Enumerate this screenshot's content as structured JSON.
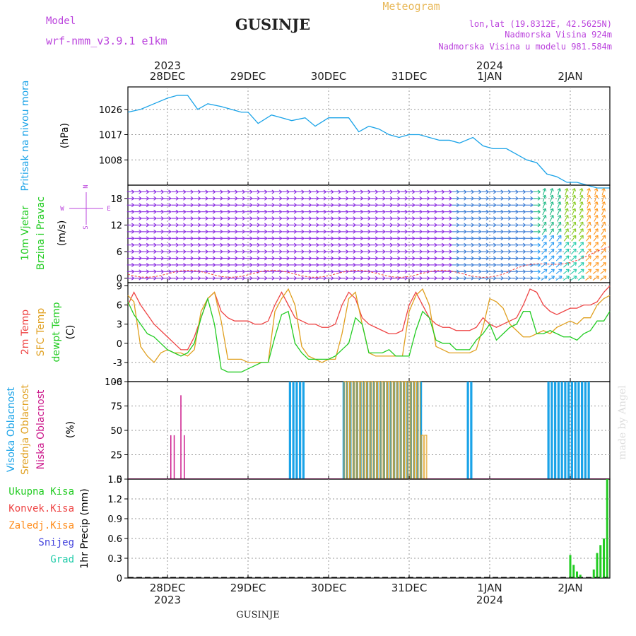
{
  "header": {
    "model_label": "Model",
    "model_name": "wrf-nmm_v3.9.1 e1km",
    "title": "GUSINJE",
    "meteogram": "Meteogram",
    "lonlat": "lon,lat (19.8312E, 42.5625N)",
    "altitude": "Nadmorska Visina 924m",
    "model_altitude": "Nadmorska Visina u modelu 981.584m"
  },
  "footer": {
    "station": "GUSINJE"
  },
  "watermark": "made by Angel",
  "compass": {
    "north": "N",
    "south": "S",
    "west": "W",
    "east": "E"
  },
  "colors": {
    "pressure": "#1aa3e8",
    "t2m": "#ee4444",
    "sfc": "#e0a020",
    "dew": "#22cc22",
    "high_cloud": "#1aa3e8",
    "mid_cloud": "#e0a020",
    "low_cloud": "#cc1a8c",
    "total_precip": "#22cc22",
    "conv_precip": "#ee4444",
    "freezing": "#ff8c1a",
    "snow": "#4444dd",
    "grad": "#22ccaa",
    "label_purple": "#bb44dd"
  },
  "chart_data": [
    {
      "type": "line",
      "ylabels": [
        "Pritisak na nivou mora",
        "(hPa)"
      ],
      "yticks": [
        1008,
        1017,
        1026
      ],
      "ylim": [
        999,
        1034
      ],
      "grid": true,
      "x_dates_top": [
        {
          "day": "28DEC",
          "year": "2023"
        },
        {
          "day": "29DEC",
          "year": ""
        },
        {
          "day": "30DEC",
          "year": ""
        },
        {
          "day": "31DEC",
          "year": ""
        },
        {
          "day": "1JAN",
          "year": "2024"
        },
        {
          "day": "2JAN",
          "year": ""
        }
      ],
      "x_hours": [
        -12,
        -8,
        -4,
        0,
        3,
        6,
        9,
        12,
        16,
        19,
        22,
        24,
        27,
        31,
        34,
        37,
        41,
        44,
        48,
        51,
        54,
        57,
        60,
        63,
        66,
        69,
        72,
        75,
        78,
        81,
        84,
        87,
        91,
        94,
        97,
        101,
        104,
        107,
        110,
        113,
        116,
        119,
        122,
        125,
        128,
        131,
        132
      ],
      "series": [
        {
          "values": [
            1025,
            1026,
            1028,
            1030,
            1031,
            1031,
            1026,
            1028,
            1027,
            1026,
            1025,
            1025,
            1021,
            1024,
            1023,
            1022,
            1023,
            1020,
            1023,
            1023,
            1023,
            1018,
            1020,
            1019,
            1017,
            1016,
            1017,
            1017,
            1016,
            1015,
            1015,
            1014,
            1016,
            1013,
            1012,
            1012,
            1010,
            1008,
            1007,
            1003,
            1002,
            1000,
            1000,
            999,
            998,
            998,
            998
          ]
        }
      ]
    },
    {
      "type": "barbs",
      "ylabels": [
        "10m Vjetar",
        "Brzina i Pravac",
        "(m/s)"
      ],
      "yticks": [
        0,
        6,
        12,
        18
      ],
      "ylim": [
        -1,
        21
      ],
      "grid": true
    },
    {
      "type": "line",
      "ylabels": [
        "2m Temp",
        "SFC Temp",
        "dewpt Temp",
        "(C)"
      ],
      "yticks": [
        -6,
        -3,
        0,
        3,
        6,
        9
      ],
      "ylim": [
        -6,
        9.5
      ],
      "grid": true,
      "x_hours": [
        -12,
        -10,
        -8,
        -6,
        -4,
        -2,
        0,
        2,
        4,
        6,
        8,
        10,
        12,
        14,
        16,
        18,
        20,
        22,
        24,
        26,
        28,
        30,
        32,
        34,
        36,
        38,
        40,
        42,
        44,
        46,
        48,
        50,
        52,
        54,
        56,
        58,
        60,
        62,
        64,
        66,
        68,
        70,
        72,
        74,
        76,
        78,
        80,
        82,
        84,
        86,
        88,
        90,
        92,
        94,
        96,
        98,
        100,
        102,
        104,
        106,
        108,
        110,
        112,
        114,
        116,
        118,
        120,
        122,
        124,
        126,
        128,
        130,
        132
      ],
      "series": [
        {
          "values": [
            6,
            8,
            6,
            4.5,
            3,
            2,
            1,
            0,
            -1,
            -1,
            1,
            4,
            7,
            8,
            5,
            4,
            3.5,
            3.5,
            3.5,
            3,
            3,
            3.5,
            6,
            8,
            6,
            4,
            3.5,
            3,
            3,
            2.5,
            2.5,
            3,
            6,
            8,
            7,
            4,
            3,
            2.5,
            2,
            1.5,
            1.5,
            2,
            6,
            8,
            6,
            4,
            3,
            2.5,
            2.5,
            2,
            2,
            2,
            2.5,
            4,
            3,
            2.5,
            3,
            3.5,
            4,
            6,
            8.5,
            8,
            6,
            5,
            4.5,
            5,
            5.5,
            5.5,
            6,
            6,
            6.5,
            8,
            9
          ]
        },
        {
          "values": [
            7.5,
            6.5,
            -0.5,
            -2,
            -3,
            -1.5,
            -1,
            -1.5,
            -1.5,
            -2,
            -1,
            5,
            7,
            8,
            3.5,
            -2.5,
            -2.5,
            -2.5,
            -3,
            -3,
            -3,
            -3,
            5,
            7,
            8.5,
            6,
            -0.5,
            -2,
            -2.5,
            -3,
            -2.5,
            -2.5,
            1.5,
            7,
            8,
            3,
            -1.5,
            -2,
            -2,
            -2,
            -2,
            -2,
            5,
            7.5,
            8.5,
            6,
            -0.5,
            -1,
            -1.5,
            -1.5,
            -1.5,
            -1.5,
            -1,
            2.5,
            7,
            6.5,
            5.5,
            3,
            2,
            1,
            1,
            1.5,
            2,
            1.5,
            2.5,
            3,
            3.5,
            3,
            4,
            4,
            6,
            7,
            7.5
          ]
        },
        {
          "values": [
            6.5,
            4.5,
            3,
            1.5,
            1,
            0,
            -1,
            -1.5,
            -2,
            -1.5,
            0,
            4,
            7,
            3,
            -4,
            -4.5,
            -4.5,
            -4.5,
            -4,
            -3.5,
            -3,
            -3,
            1,
            4.5,
            5,
            0,
            -1.5,
            -2.5,
            -2.5,
            -2.5,
            -2.5,
            -2,
            -1,
            0,
            4,
            3,
            -1.5,
            -1.5,
            -1.5,
            -1,
            -2,
            -2,
            -2,
            2,
            5,
            4,
            0.5,
            0,
            0,
            -1,
            -1,
            -1,
            0.5,
            1.5,
            3,
            0.5,
            1.5,
            2.5,
            3,
            5,
            5,
            1.5,
            1.5,
            2,
            1.5,
            1,
            1,
            0.5,
            1.5,
            2,
            3.5,
            3.5,
            5
          ]
        }
      ]
    },
    {
      "type": "bar",
      "ylabels": [
        "Visoka Oblacnost",
        "Srednja Oblacnost",
        "Niska Oblacnost",
        "(%)"
      ],
      "yticks": [
        0,
        25,
        50,
        75,
        100
      ],
      "ylim": [
        0,
        100
      ],
      "grid": true,
      "series": [
        {
          "name": "Visoka Oblacnost",
          "segments": [
            [
              36.5,
              40.5
            ],
            [
              52.5,
              62.5
            ],
            [
              63.5,
              75.5
            ],
            [
              89.5,
              91
            ],
            [
              113.5,
              121.5
            ],
            [
              122.5,
              126
            ]
          ]
        },
        {
          "name": "Srednja Oblacnost",
          "segments": [
            [
              52.5,
              77
            ]
          ]
        },
        {
          "name": "Niska Oblacnost",
          "bars": [
            [
              1,
              45
            ],
            [
              2,
              45
            ],
            [
              4,
              86
            ],
            [
              5,
              45
            ]
          ]
        }
      ]
    },
    {
      "type": "bar",
      "ylabels": [
        "1hr Precip (mm)"
      ],
      "yticks": [
        0,
        0.3,
        0.6,
        0.9,
        1.2,
        1.5
      ],
      "ylim": [
        0,
        1.5
      ],
      "grid": true,
      "legend": [
        "Ukupna Kisa",
        "Konvek.Kisa",
        "Zaledj.Kisa",
        "Snijeg",
        "Grad"
      ],
      "x_dates_bottom": [
        {
          "day": "28DEC",
          "year": "2023"
        },
        {
          "day": "29DEC",
          "year": ""
        },
        {
          "day": "30DEC",
          "year": ""
        },
        {
          "day": "31DEC",
          "year": ""
        },
        {
          "day": "1JAN",
          "year": "2024"
        },
        {
          "day": "2JAN",
          "year": ""
        }
      ],
      "series": [
        {
          "name": "Ukupna Kisa",
          "x_hours": [
            120,
            121,
            122,
            123,
            127,
            128,
            129,
            130,
            131
          ],
          "values": [
            0.35,
            0.2,
            0.1,
            0.05,
            0.13,
            0.38,
            0.5,
            0.6,
            1.5
          ]
        }
      ]
    }
  ]
}
